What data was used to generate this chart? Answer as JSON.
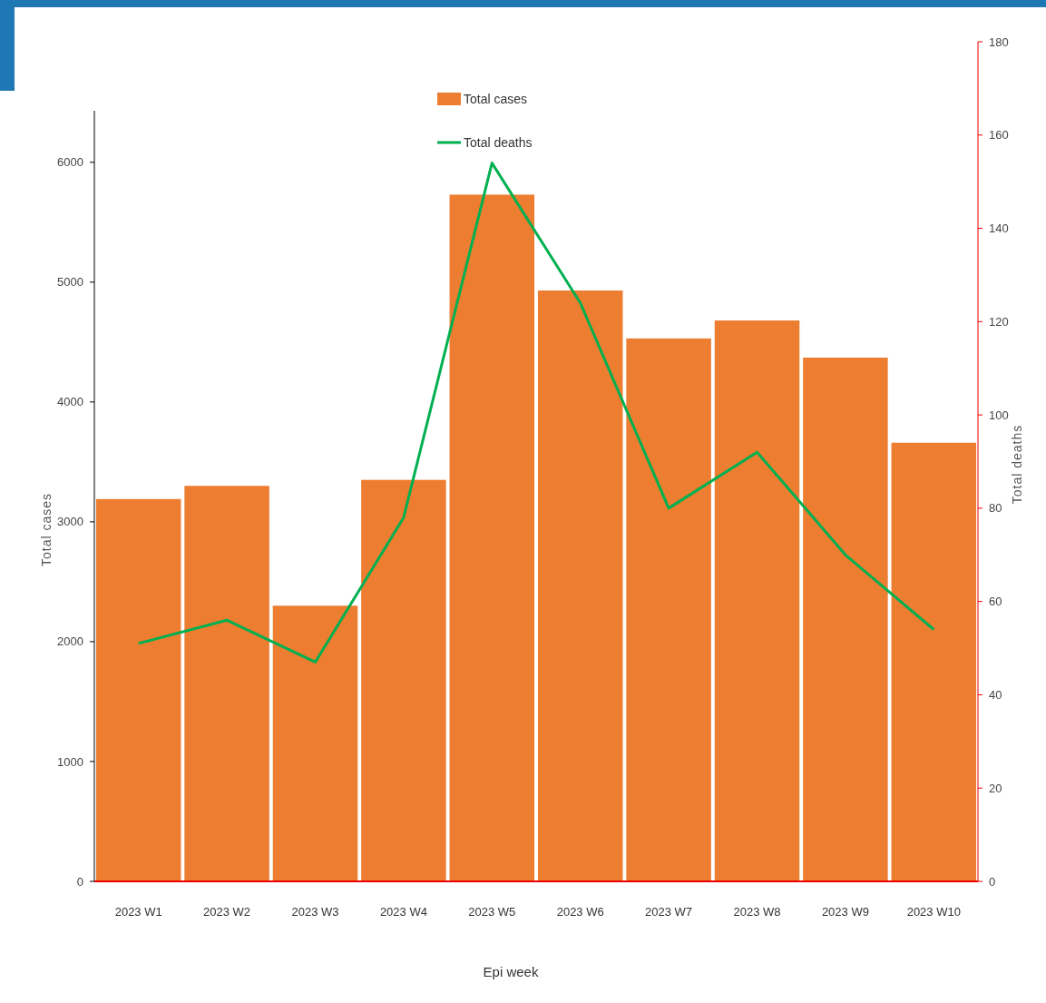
{
  "chart_data": {
    "type": "bar",
    "xlabel": "Epi week",
    "ylabel": "Total cases",
    "y2label": "Total deaths",
    "categories": [
      "2023 W1",
      "2023 W2",
      "2023 W3",
      "2023 W4",
      "2023 W5",
      "2023 W6",
      "2023 W7",
      "2023 W8",
      "2023 W9",
      "2023 W10"
    ],
    "series": [
      {
        "name": "Total cases",
        "color": "#ed7d31",
        "values": [
          3190,
          3300,
          2300,
          3350,
          5730,
          4930,
          4530,
          4680,
          4370,
          3660
        ]
      },
      {
        "name": "Total deaths",
        "type": "line",
        "axis": "y2",
        "color": "#00b050",
        "values": [
          51,
          56,
          47,
          78,
          154,
          124,
          80,
          92,
          70,
          54
        ]
      }
    ],
    "ylim": [
      0,
      6430
    ],
    "yticks": [
      0,
      1000,
      2000,
      3000,
      4000,
      5000,
      6000
    ],
    "y2lim": [
      0,
      180
    ],
    "y2ticks": [
      0,
      20,
      40,
      60,
      80,
      100,
      120,
      140,
      160,
      180
    ],
    "grid": false,
    "legend": "top",
    "marker": "none",
    "line_style": "solid"
  }
}
